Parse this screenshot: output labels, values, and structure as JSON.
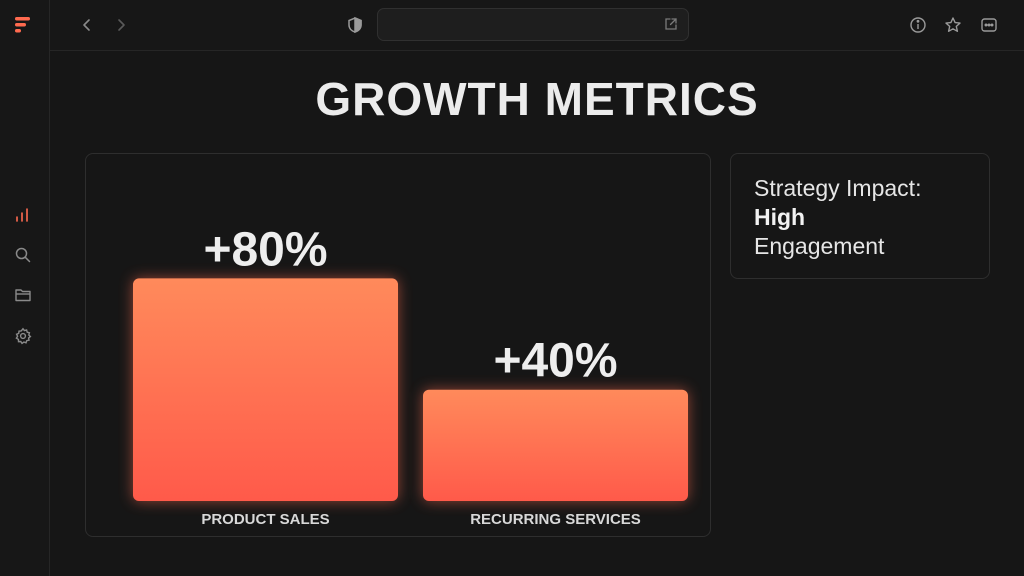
{
  "page": {
    "title": "GROWTH METRICS"
  },
  "sidebar": {
    "items": [
      {
        "icon": "chart-bar-icon",
        "active": true
      },
      {
        "icon": "search-icon"
      },
      {
        "icon": "folder-icon"
      },
      {
        "icon": "gear-icon"
      }
    ]
  },
  "topbar": {
    "address_value": "",
    "icons": [
      "back-icon",
      "forward-icon",
      "shield-icon",
      "external-link-icon",
      "info-icon",
      "star-icon",
      "more-icon"
    ]
  },
  "impact": {
    "line1": "Strategy Impact:",
    "line2": "High",
    "line3": "Engagement"
  },
  "colors": {
    "accent": "#ff6a4f",
    "bar_top": "#ff8a5b",
    "bar_bottom": "#ff5a4a",
    "background": "#161616"
  },
  "chart_data": {
    "type": "bar",
    "categories": [
      "PRODUCT SALES",
      "RECURRING SERVICES"
    ],
    "values": [
      80,
      40
    ],
    "value_labels": [
      "+80%",
      "+40%"
    ],
    "ylim": [
      0,
      100
    ],
    "title": "",
    "xlabel": "",
    "ylabel": ""
  }
}
